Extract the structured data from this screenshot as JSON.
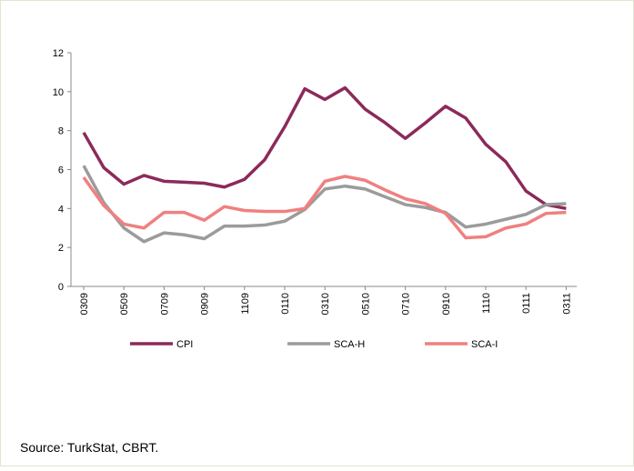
{
  "chart_data": {
    "type": "line",
    "categories": [
      "0309",
      null,
      "0509",
      null,
      "0709",
      null,
      "0909",
      null,
      "1109",
      null,
      "0110",
      null,
      "0310",
      null,
      "0510",
      null,
      "0710",
      null,
      "0910",
      null,
      "1110",
      null,
      "0111",
      null,
      "0311"
    ],
    "series": [
      {
        "name": "CPI",
        "color": "#8b2a5a",
        "values": [
          7.9,
          6.1,
          5.25,
          5.7,
          5.4,
          5.35,
          5.3,
          5.1,
          5.5,
          6.5,
          8.2,
          10.15,
          9.6,
          10.2,
          9.1,
          8.4,
          7.6,
          8.4,
          9.25,
          8.65,
          7.3,
          6.4,
          4.9,
          4.2,
          4.0
        ]
      },
      {
        "name": "SCA-H",
        "color": "#9b9b9b",
        "values": [
          6.2,
          4.3,
          3.0,
          2.3,
          2.75,
          2.65,
          2.45,
          3.1,
          3.1,
          3.15,
          3.35,
          3.95,
          5.0,
          5.15,
          5.0,
          4.6,
          4.2,
          4.05,
          3.8,
          3.05,
          3.2,
          3.45,
          3.7,
          4.2,
          4.25
        ]
      },
      {
        "name": "SCA-I",
        "color": "#f08080",
        "values": [
          5.6,
          4.15,
          3.2,
          3.0,
          3.8,
          3.8,
          3.4,
          4.1,
          3.9,
          3.85,
          3.85,
          4.0,
          5.4,
          5.65,
          5.45,
          4.95,
          4.5,
          4.25,
          3.75,
          2.5,
          2.55,
          3.0,
          3.2,
          3.75,
          3.8
        ]
      }
    ],
    "ylim": [
      0,
      12
    ],
    "yticks": [
      0,
      2,
      4,
      6,
      8,
      10,
      12
    ],
    "legend": "bottom",
    "source": "Source: TurkStat, CBRT."
  }
}
